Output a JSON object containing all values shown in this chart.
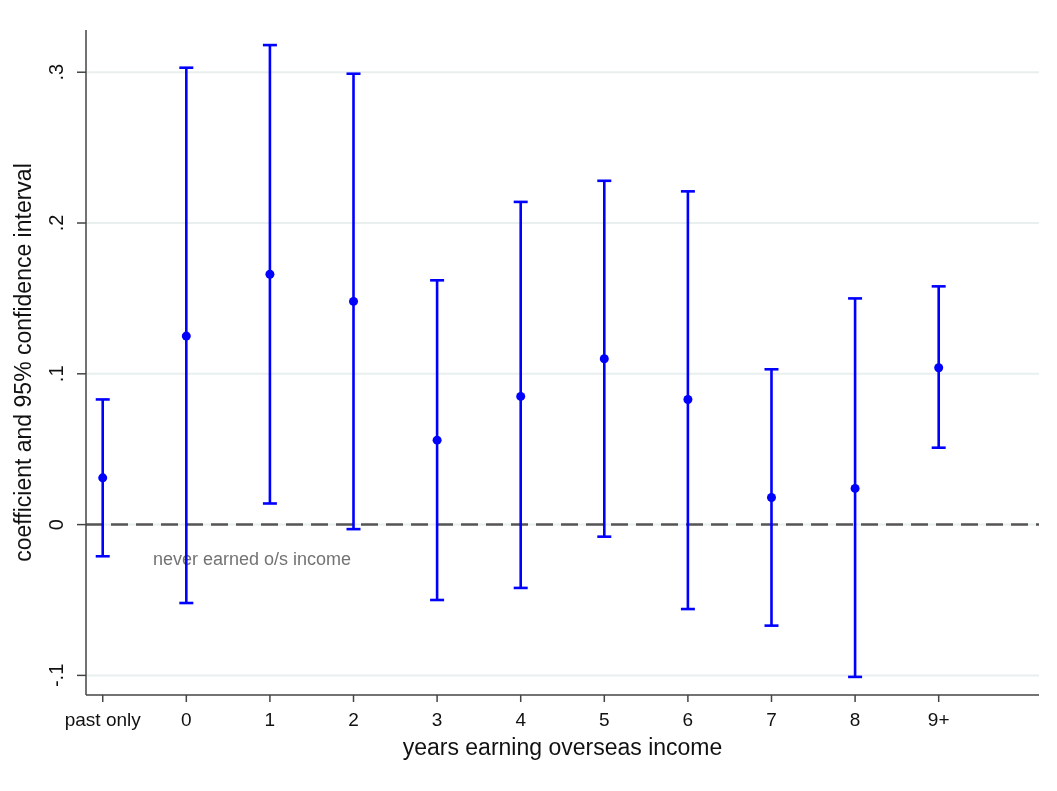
{
  "chart_data": {
    "type": "scatter",
    "xlabel": "years earning overseas income",
    "ylabel": "coefficient and 95% confidence interval",
    "x": [
      -1,
      0,
      1,
      2,
      3,
      4,
      5,
      6,
      7,
      8,
      9
    ],
    "values": [
      0.031,
      0.125,
      0.166,
      0.148,
      0.056,
      0.085,
      0.11,
      0.083,
      0.018,
      0.024,
      0.104
    ],
    "errors": [
      [
        -0.021,
        0.083
      ],
      [
        -0.052,
        0.303
      ],
      [
        0.014,
        0.318
      ],
      [
        -0.003,
        0.299
      ],
      [
        -0.05,
        0.162
      ],
      [
        -0.042,
        0.214
      ],
      [
        -0.008,
        0.228
      ],
      [
        -0.056,
        0.221
      ],
      [
        -0.067,
        0.103
      ],
      [
        -0.101,
        0.15
      ],
      [
        0.051,
        0.158
      ]
    ],
    "color": "#0000ff",
    "marker": "circle",
    "xlim": [
      -1.2,
      10.2
    ],
    "xticks": [
      {
        "value": -1,
        "label": "past only"
      },
      0,
      1,
      2,
      3,
      4,
      5,
      6,
      7,
      8,
      {
        "value": 9,
        "label": "9+"
      }
    ],
    "ylim": [
      -0.113,
      0.328
    ],
    "yticks": [
      {
        "value": -0.1,
        "label": "-.1"
      },
      0,
      {
        "value": 0.1,
        "label": ".1"
      },
      {
        "value": 0.2,
        "label": ".2"
      },
      {
        "value": 0.3,
        "label": ".3"
      }
    ],
    "grid": "y",
    "ref_lines": [
      {
        "axis": "y",
        "value": 0,
        "label": "never earned o/s income",
        "color": "#555555",
        "line_style": "dashed"
      }
    ]
  }
}
